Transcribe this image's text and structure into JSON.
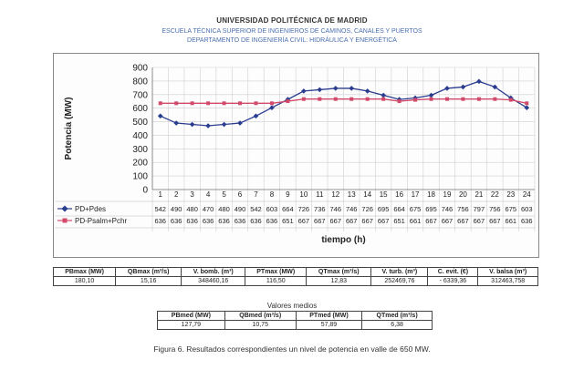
{
  "header": {
    "university": "UNIVERSIDAD POLITÉCNICA DE MADRID",
    "school": "ESCUELA TÉCNICA SUPERIOR DE INGENIEROS DE CAMINOS, CANALES Y PUERTOS",
    "department": "DEPARTAMENTO DE INGENIERÍA CIVIL: HIDRÁULICA Y ENERGÉTICA"
  },
  "chart_data": {
    "type": "line",
    "ylabel": "Potencia (MW)",
    "xlabel": "tiempo (h)",
    "ylim": [
      0,
      900
    ],
    "yticks": [
      0,
      100,
      200,
      300,
      400,
      500,
      600,
      700,
      800,
      900
    ],
    "categories": [
      "1",
      "2",
      "3",
      "4",
      "5",
      "6",
      "7",
      "8",
      "9",
      "10",
      "11",
      "12",
      "13",
      "14",
      "15",
      "16",
      "17",
      "18",
      "19",
      "20",
      "21",
      "22",
      "23",
      "24"
    ],
    "grid": true,
    "series": [
      {
        "name": "PD+Pdes",
        "color": "#2b3d8f",
        "marker": "diamond",
        "values": [
          542,
          490,
          480,
          470,
          480,
          490,
          542,
          603,
          664,
          726,
          736,
          746,
          746,
          726,
          695,
          664,
          675,
          695,
          746,
          756,
          797,
          756,
          675,
          603
        ]
      },
      {
        "name": "PD-Psalm+Pchr",
        "color": "#d24a6a",
        "marker": "square",
        "values": [
          636,
          636,
          636,
          636,
          636,
          636,
          636,
          636,
          651,
          667,
          667,
          667,
          667,
          667,
          667,
          651,
          661,
          667,
          667,
          667,
          667,
          667,
          661,
          636
        ]
      }
    ]
  },
  "results": {
    "headers": [
      "PBmax (MW)",
      "QBmax (m³/s)",
      "V. bomb. (m³)",
      "PTmax (MW)",
      "QTmax (m³/s)",
      "V. turb. (m³)",
      "C. evit. (€)",
      "V. balsa (m³)"
    ],
    "values": [
      "180,10",
      "15,16",
      "348460,16",
      "116,50",
      "12,83",
      "252469,76",
      "- 6339,36",
      "312463,758"
    ]
  },
  "medios": {
    "title": "Valores medios",
    "headers": [
      "PBmed (MW)",
      "QBmed (m³/s)",
      "PTmed (MW)",
      "QTmed (m³/s)"
    ],
    "values": [
      "127,79",
      "10,75",
      "57,89",
      "6,38"
    ]
  },
  "caption": "Figura 6. Resultados correspondientes un nivel de potencia en valle de 650 MW."
}
